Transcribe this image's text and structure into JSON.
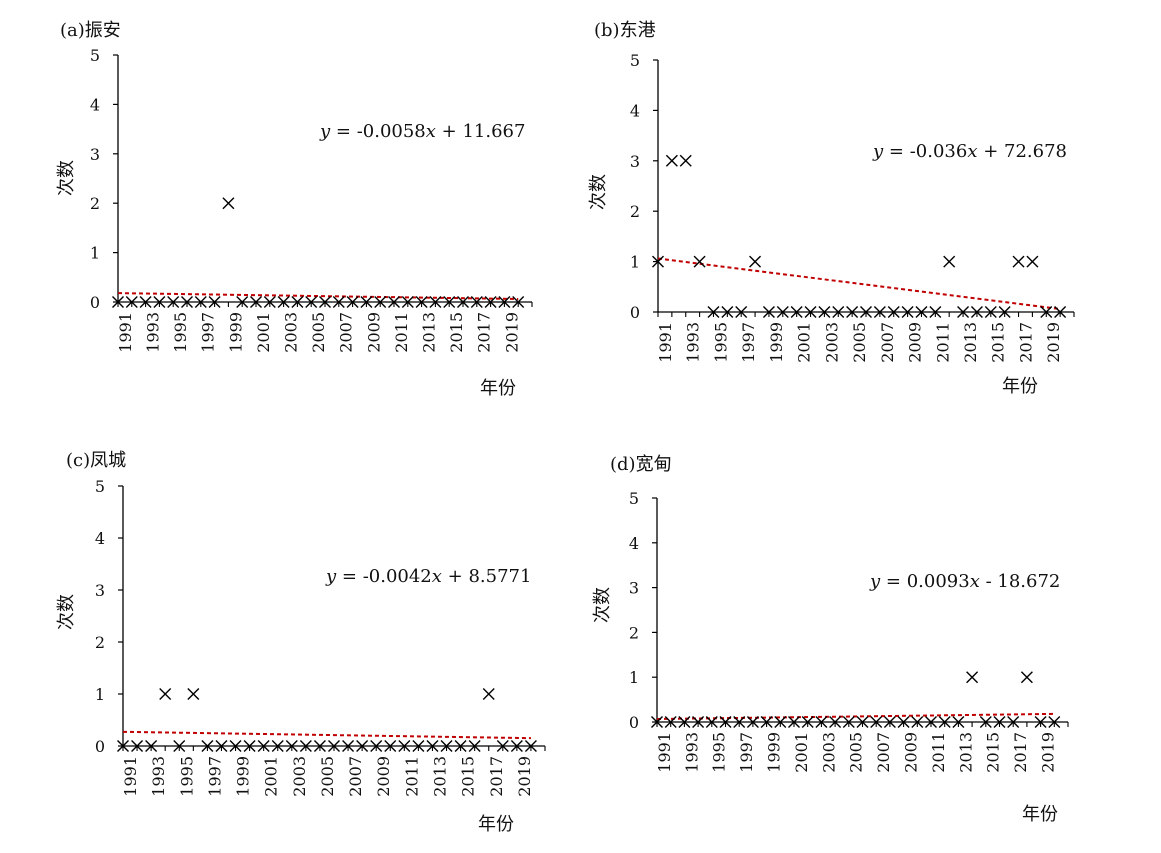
{
  "figure": {
    "ylabel": "次数",
    "xlabel": "年份"
  },
  "chart_data": [
    {
      "type": "scatter",
      "title": "(a)振安",
      "xlabel": "年份",
      "ylabel": "次数",
      "ylim": [
        0,
        5
      ],
      "yticks": [
        0,
        1,
        2,
        3,
        4,
        5
      ],
      "xlim": [
        1991,
        2020
      ],
      "xticks": [
        "1991",
        "1993",
        "1995",
        "1997",
        "1999",
        "2001",
        "2003",
        "2005",
        "2007",
        "2009",
        "2011",
        "2013",
        "2015",
        "2017",
        "2019"
      ],
      "x": [
        1991,
        1992,
        1993,
        1994,
        1995,
        1996,
        1997,
        1998,
        1999,
        2000,
        2001,
        2002,
        2003,
        2004,
        2005,
        2006,
        2007,
        2008,
        2009,
        2010,
        2011,
        2012,
        2013,
        2014,
        2015,
        2016,
        2017,
        2018,
        2019,
        2020
      ],
      "y": [
        0,
        0,
        0,
        0,
        0,
        0,
        0,
        0,
        2,
        0,
        0,
        0,
        0,
        0,
        0,
        0,
        0,
        0,
        0,
        0,
        0,
        0,
        0,
        0,
        0,
        0,
        0,
        0,
        0,
        0
      ],
      "marker": "x",
      "trendline": {
        "slope": -0.0058,
        "intercept": 11.667,
        "color": "#c00000",
        "equation": {
          "lhs": "y",
          "mid": " = -0.0058",
          "var": "x",
          "rest": " + 11.667"
        }
      }
    },
    {
      "type": "scatter",
      "title": "(b)东港",
      "xlabel": "年份",
      "ylabel": "次数",
      "ylim": [
        0,
        5
      ],
      "yticks": [
        0,
        1,
        2,
        3,
        4,
        5
      ],
      "xlim": [
        1991,
        2020
      ],
      "xticks": [
        "1991",
        "1993",
        "1995",
        "1997",
        "1999",
        "2001",
        "2003",
        "2005",
        "2007",
        "2009",
        "2011",
        "2013",
        "2015",
        "2017",
        "2019"
      ],
      "x": [
        1991,
        1992,
        1993,
        1994,
        1995,
        1996,
        1997,
        1998,
        1999,
        2000,
        2001,
        2002,
        2003,
        2004,
        2005,
        2006,
        2007,
        2008,
        2009,
        2010,
        2011,
        2012,
        2013,
        2014,
        2015,
        2016,
        2017,
        2018,
        2019,
        2020
      ],
      "y": [
        1,
        3,
        3,
        1,
        0,
        0,
        0,
        1,
        0,
        0,
        0,
        0,
        0,
        0,
        0,
        0,
        0,
        0,
        0,
        0,
        0,
        1,
        0,
        0,
        0,
        0,
        1,
        1,
        0,
        0
      ],
      "marker": "x",
      "trendline": {
        "slope": -0.036,
        "intercept": 72.678,
        "color": "#c00000",
        "equation": {
          "lhs": "y",
          "mid": " = -0.036",
          "var": "x",
          "rest": " + 72.678"
        }
      }
    },
    {
      "type": "scatter",
      "title": "(c)凤城",
      "xlabel": "年份",
      "ylabel": "次数",
      "ylim": [
        0,
        5
      ],
      "yticks": [
        0,
        1,
        2,
        3,
        4,
        5
      ],
      "xlim": [
        1991,
        2020
      ],
      "xticks": [
        "1991",
        "1993",
        "1995",
        "1997",
        "1999",
        "2001",
        "2003",
        "2005",
        "2007",
        "2009",
        "2011",
        "2013",
        "2015",
        "2017",
        "2019"
      ],
      "x": [
        1991,
        1992,
        1993,
        1994,
        1995,
        1996,
        1997,
        1998,
        1999,
        2000,
        2001,
        2002,
        2003,
        2004,
        2005,
        2006,
        2007,
        2008,
        2009,
        2010,
        2011,
        2012,
        2013,
        2014,
        2015,
        2016,
        2017,
        2018,
        2019,
        2020
      ],
      "y": [
        0,
        0,
        0,
        1,
        0,
        1,
        0,
        0,
        0,
        0,
        0,
        0,
        0,
        0,
        0,
        0,
        0,
        0,
        0,
        0,
        0,
        0,
        0,
        0,
        0,
        0,
        1,
        0,
        0,
        0
      ],
      "marker": "x",
      "trendline": {
        "slope": -0.0042,
        "intercept": 8.5771,
        "color": "#c00000",
        "equation": {
          "lhs": "y",
          "mid": " = -0.0042",
          "var": "x",
          "rest": " + 8.5771"
        }
      }
    },
    {
      "type": "scatter",
      "title": "(d)宽甸",
      "xlabel": "年份",
      "ylabel": "次数",
      "ylim": [
        0,
        5
      ],
      "yticks": [
        0,
        1,
        2,
        3,
        4,
        5
      ],
      "xlim": [
        1991,
        2020
      ],
      "xticks": [
        "1991",
        "1993",
        "1995",
        "1997",
        "1999",
        "2001",
        "2003",
        "2005",
        "2007",
        "2009",
        "2011",
        "2013",
        "2015",
        "2017",
        "2019"
      ],
      "x": [
        1991,
        1992,
        1993,
        1994,
        1995,
        1996,
        1997,
        1998,
        1999,
        2000,
        2001,
        2002,
        2003,
        2004,
        2005,
        2006,
        2007,
        2008,
        2009,
        2010,
        2011,
        2012,
        2013,
        2014,
        2015,
        2016,
        2017,
        2018,
        2019,
        2020
      ],
      "y": [
        0,
        0,
        0,
        0,
        0,
        0,
        0,
        0,
        0,
        0,
        0,
        0,
        0,
        0,
        0,
        0,
        0,
        0,
        0,
        0,
        0,
        0,
        0,
        1,
        0,
        0,
        0,
        1,
        0,
        0
      ],
      "marker": "x",
      "trendline": {
        "slope": 0.0093,
        "intercept": -18.672,
        "color": "#c00000",
        "equation": {
          "lhs": "y",
          "mid": " = 0.0093",
          "var": "x",
          "rest": " - 18.672"
        }
      }
    }
  ]
}
